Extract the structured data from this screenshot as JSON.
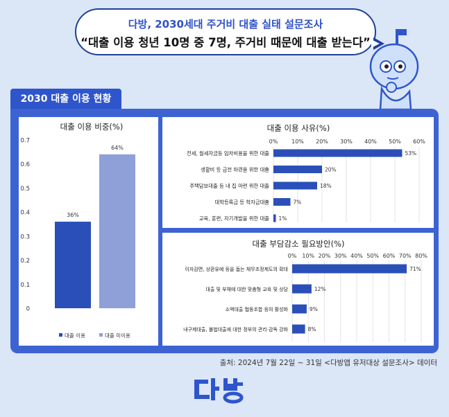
{
  "bubble": {
    "subtitle": "다방, 2030세대 주거비 대출 실태 설문조사",
    "headline": "“대출 이용 청년 10명 중 7명, 주거비 때문에 대출 받는다”"
  },
  "section_tab": "2030 대출 이용 현황",
  "source": "출처: 2024년 7월 22일 ~ 31일 <다방앱 유저대상 설문조사> 데이터",
  "colors": {
    "accent": "#2e55cc",
    "bar_dark": "#2b4fb8",
    "bar_light": "#8fa0d8",
    "bg": "#dbe6f7"
  },
  "chart_data": [
    {
      "type": "bar",
      "title": "대출 이용 비중(%)",
      "categories": [
        "대출 이용",
        "대출 미이용"
      ],
      "values": [
        0.36,
        0.64
      ],
      "data_labels": [
        "36%",
        "64%"
      ],
      "yticks": [
        "0",
        "0.1",
        "0.2",
        "0.3",
        "0.4",
        "0.5",
        "0.6",
        "0.7"
      ],
      "ylim": [
        0,
        0.7
      ],
      "legend": [
        "대출 이용",
        "대출 미이용"
      ],
      "legend_position": "bottom",
      "series_colors": [
        "#2b4fb8",
        "#8fa0d8"
      ]
    },
    {
      "type": "bar",
      "orientation": "horizontal",
      "title": "대출 이용 사유(%)",
      "categories": [
        "전세, 월세자금등 임차비용을 위한 대출",
        "생활비 등 급전 마련을 위한 대출",
        "주택담보대출 등 내 집 마련 위한 대출",
        "대학등록금 등 학자금대출",
        "교육, 훈련, 자기개발을 위한 대출"
      ],
      "values": [
        53,
        20,
        18,
        7,
        1
      ],
      "data_labels": [
        "53%",
        "20%",
        "18%",
        "7%",
        "1%"
      ],
      "xticks": [
        "0%",
        "10%",
        "20%",
        "30%",
        "40%",
        "50%",
        "60%"
      ],
      "xlim": [
        0,
        60
      ],
      "grid": true
    },
    {
      "type": "bar",
      "orientation": "horizontal",
      "title": "대출 부담감소 필요방안(%)",
      "categories": [
        "이자감면, 상환유예 등을 돕는 채무조정제도의 확대",
        "대출 및 부채에 대한 맞춤형 교육 및 상담",
        "소액대출 협동조합 등의 활성화",
        "내구제대출, 불법대출에 대한 정부의 관리·감독 강화"
      ],
      "values": [
        71,
        12,
        9,
        8
      ],
      "data_labels": [
        "71%",
        "12%",
        "9%",
        "8%"
      ],
      "xticks": [
        "0%",
        "10%",
        "20%",
        "30%",
        "40%",
        "50%",
        "60%",
        "70%",
        "80%"
      ],
      "xlim": [
        0,
        80
      ],
      "grid": true
    }
  ]
}
